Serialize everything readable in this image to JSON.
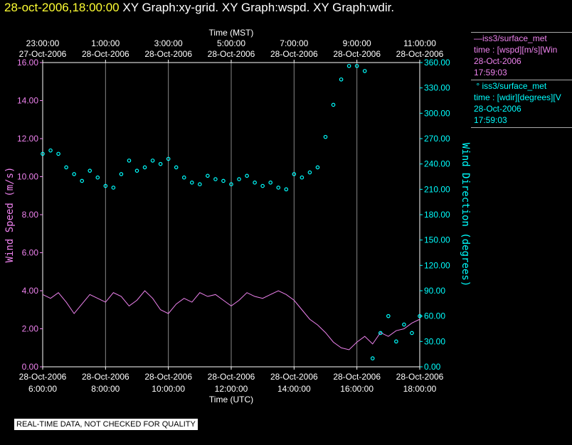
{
  "header": {
    "timestamp": "28-oct-2006,18:00:00",
    "titles": "XY Graph:xy-grid.  XY Graph:wspd.  XY Graph:wdir."
  },
  "colors": {
    "wspd": "#ee82ee",
    "wdir": "#00ffff",
    "grid": "#888888",
    "axis": "#ffffff"
  },
  "legend": {
    "wspd": {
      "name": "iss3/surface_met",
      "desc": "time : [wspd][m/s][Win",
      "date": "28-Oct-2006",
      "time": "17:59:03"
    },
    "wdir": {
      "name": "iss3/surface_met",
      "desc": "time : [wdir][degrees][V",
      "date": "28-Oct-2006",
      "time": "17:59:03"
    }
  },
  "disclaimer": "REAL-TIME DATA, NOT CHECKED FOR QUALITY",
  "chart_data": {
    "type": "line",
    "title": "",
    "top_axis": {
      "label": "Time (MST)",
      "ticks": [
        {
          "t": 0,
          "time": "23:00:00",
          "date": "27-Oct-2006"
        },
        {
          "t": 2,
          "time": "1:00:00",
          "date": "28-Oct-2006"
        },
        {
          "t": 4,
          "time": "3:00:00",
          "date": "28-Oct-2006"
        },
        {
          "t": 6,
          "time": "5:00:00",
          "date": "28-Oct-2006"
        },
        {
          "t": 8,
          "time": "7:00:00",
          "date": "28-Oct-2006"
        },
        {
          "t": 10,
          "time": "9:00:00",
          "date": "28-Oct-2006"
        },
        {
          "t": 12,
          "time": "11:00:00",
          "date": "28-Oct-2006"
        }
      ]
    },
    "bottom_axis": {
      "label": "Time (UTC)",
      "ticks": [
        {
          "t": 0,
          "date": "28-Oct-2006",
          "time": "6:00:00"
        },
        {
          "t": 2,
          "date": "28-Oct-2006",
          "time": "8:00:00"
        },
        {
          "t": 4,
          "date": "28-Oct-2006",
          "time": "10:00:00"
        },
        {
          "t": 6,
          "date": "28-Oct-2006",
          "time": "12:00:00"
        },
        {
          "t": 8,
          "date": "28-Oct-2006",
          "time": "14:00:00"
        },
        {
          "t": 10,
          "date": "28-Oct-2006",
          "time": "16:00:00"
        },
        {
          "t": 12,
          "date": "28-Oct-2006",
          "time": "18:00:00"
        }
      ]
    },
    "x_range_hours_utc": [
      6,
      18
    ],
    "left_axis": {
      "label": "Wind Speed (m/s)",
      "ylim": [
        0,
        16
      ],
      "ticks": [
        "0.00",
        "2.00",
        "4.00",
        "6.00",
        "8.00",
        "10.00",
        "12.00",
        "14.00",
        "16.00"
      ]
    },
    "right_axis": {
      "label": "Wind Direction (degrees)",
      "ylim": [
        0,
        360
      ],
      "ticks": [
        "0.00",
        "30.00",
        "60.00",
        "90.00",
        "120.00",
        "150.00",
        "180.00",
        "210.00",
        "240.00",
        "270.00",
        "300.00",
        "330.00",
        "360.00"
      ]
    },
    "grid": "vertical",
    "series": [
      {
        "name": "iss3/surface_met",
        "variable": "wspd",
        "style": "line",
        "axis": "left",
        "x_utc_hour": [
          6.0,
          6.25,
          6.5,
          6.75,
          7.0,
          7.25,
          7.5,
          7.75,
          8.0,
          8.25,
          8.5,
          8.75,
          9.0,
          9.25,
          9.5,
          9.75,
          10.0,
          10.25,
          10.5,
          10.75,
          11.0,
          11.25,
          11.5,
          11.75,
          12.0,
          12.25,
          12.5,
          12.75,
          13.0,
          13.25,
          13.5,
          13.75,
          14.0,
          14.25,
          14.5,
          14.75,
          15.0,
          15.25,
          15.5,
          15.75,
          16.0,
          16.25,
          16.5,
          16.75,
          17.0,
          17.25,
          17.5,
          17.75,
          18.0
        ],
        "values": [
          3.8,
          3.6,
          3.9,
          3.4,
          2.8,
          3.3,
          3.8,
          3.6,
          3.4,
          3.9,
          3.7,
          3.2,
          3.5,
          4.0,
          3.6,
          3.0,
          2.8,
          3.3,
          3.6,
          3.4,
          3.9,
          3.7,
          3.8,
          3.5,
          3.2,
          3.5,
          3.9,
          3.7,
          3.6,
          3.8,
          4.0,
          3.8,
          3.5,
          3.0,
          2.5,
          2.2,
          1.8,
          1.3,
          1.0,
          0.9,
          1.3,
          1.6,
          1.2,
          1.8,
          1.6,
          1.9,
          2.0,
          2.3,
          2.5
        ]
      },
      {
        "name": "iss3/surface_met",
        "variable": "wdir",
        "style": "markers",
        "axis": "right",
        "x_utc_hour": [
          6.0,
          6.25,
          6.5,
          6.75,
          7.0,
          7.25,
          7.5,
          7.75,
          8.0,
          8.25,
          8.5,
          8.75,
          9.0,
          9.25,
          9.5,
          9.75,
          10.0,
          10.25,
          10.5,
          10.75,
          11.0,
          11.25,
          11.5,
          11.75,
          12.0,
          12.25,
          12.5,
          12.75,
          13.0,
          13.25,
          13.5,
          13.75,
          14.0,
          14.25,
          14.5,
          14.75,
          15.0,
          15.25,
          15.5,
          15.75,
          16.0,
          16.25,
          16.5,
          16.75,
          17.0,
          17.25,
          17.5,
          17.75,
          18.0
        ],
        "values": [
          252,
          256,
          252,
          236,
          228,
          220,
          232,
          224,
          214,
          212,
          228,
          244,
          232,
          236,
          244,
          240,
          246,
          236,
          224,
          218,
          216,
          226,
          222,
          220,
          216,
          222,
          226,
          218,
          214,
          218,
          212,
          210,
          228,
          224,
          230,
          236,
          272,
          310,
          340,
          356,
          356,
          350,
          10,
          40,
          60,
          30,
          50,
          40,
          60
        ]
      }
    ]
  }
}
